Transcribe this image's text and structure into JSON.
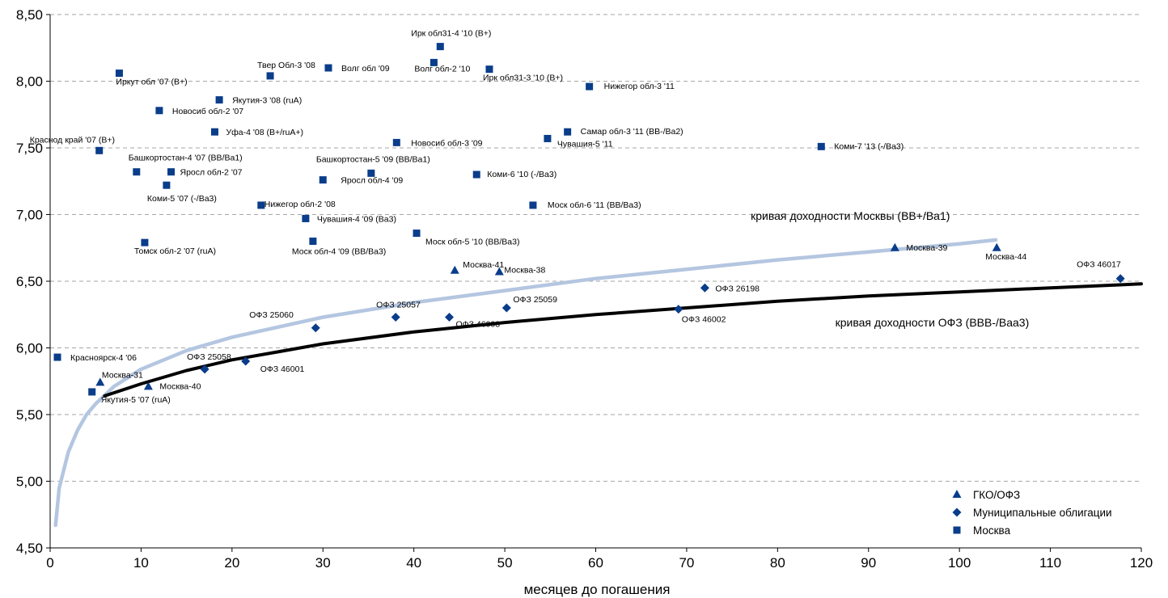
{
  "chart_data": {
    "type": "scatter",
    "xlabel": "месяцев до погашения",
    "ylabel": "",
    "xlim": [
      0,
      120
    ],
    "ylim": [
      4.5,
      8.5
    ],
    "x_ticks": [
      "0",
      "10",
      "20",
      "30",
      "40",
      "50",
      "60",
      "70",
      "80",
      "90",
      "100",
      "110",
      "120"
    ],
    "y_ticks": [
      "4,50",
      "5,00",
      "5,50",
      "6,00",
      "6,50",
      "7,00",
      "7,50",
      "8,00",
      "8,50"
    ],
    "grid": "horizontal dashed",
    "legend_position": "bottom-right",
    "colors": {
      "markers": "#0a3d8a",
      "moscow_curve": "#b4c6e0",
      "ofz_curve": "#000000",
      "grid": "#a6a6a6"
    },
    "series": [
      {
        "name": "ГКО/ОФЗ",
        "marker": "triangle",
        "points": [
          {
            "x": 5.5,
            "y": 5.74,
            "label": "Москва-31"
          },
          {
            "x": 10.8,
            "y": 5.71,
            "label": "Москва-40"
          },
          {
            "x": 44.5,
            "y": 6.58,
            "label": "Москва-41"
          },
          {
            "x": 49.4,
            "y": 6.57,
            "label": "Москва-38"
          },
          {
            "x": 92.9,
            "y": 6.75,
            "label": "Москва-39"
          },
          {
            "x": 104.1,
            "y": 6.75,
            "label": "Москва-44"
          }
        ]
      },
      {
        "name": "Муниципальные облигации",
        "marker": "diamond",
        "points": [
          {
            "x": 17.0,
            "y": 5.84,
            "label": "ОФЗ 25058"
          },
          {
            "x": 21.5,
            "y": 5.9,
            "label": "ОФЗ 46001"
          },
          {
            "x": 29.2,
            "y": 6.15,
            "label": "ОФЗ 25060"
          },
          {
            "x": 38.0,
            "y": 6.23,
            "label": "ОФЗ 25057"
          },
          {
            "x": 43.9,
            "y": 6.23,
            "label": "ОФЗ 46003"
          },
          {
            "x": 50.2,
            "y": 6.3,
            "label": "ОФЗ 25059"
          },
          {
            "x": 69.1,
            "y": 6.29,
            "label": "ОФЗ 46002"
          },
          {
            "x": 72.0,
            "y": 6.45,
            "label": "ОФЗ 26198"
          },
          {
            "x": 117.7,
            "y": 6.52,
            "label": "ОФЗ 46017"
          }
        ]
      },
      {
        "name": "Москва",
        "marker": "square",
        "points": [
          {
            "x": 0.8,
            "y": 5.93,
            "label": "Красноярск-4 '06"
          },
          {
            "x": 4.6,
            "y": 5.67,
            "label": "Якутия-5 '07 (ruA)"
          },
          {
            "x": 5.4,
            "y": 7.48,
            "label": "Краснод край '07 (B+)"
          },
          {
            "x": 7.6,
            "y": 8.06,
            "label": "Иркут обл '07 (B+)"
          },
          {
            "x": 9.5,
            "y": 7.32,
            "label": "Башкортостан-4 '07 (BB/Ba1)"
          },
          {
            "x": 10.4,
            "y": 6.79,
            "label": "Томск обл-2 '07 (ruA)"
          },
          {
            "x": 12.0,
            "y": 7.78,
            "label": "Новосиб обл-2 '07"
          },
          {
            "x": 12.8,
            "y": 7.22,
            "label": "Коми-5 '07 (-/Ba3)"
          },
          {
            "x": 13.3,
            "y": 7.32,
            "label": "Яросл обл-2 '07"
          },
          {
            "x": 18.1,
            "y": 7.62,
            "label": "Уфа-4 '08 (B+/ruA+)"
          },
          {
            "x": 18.6,
            "y": 7.86,
            "label": "Якутия-3 '08 (ruA)"
          },
          {
            "x": 23.2,
            "y": 7.07,
            "label": "Нижегор обл-2 '08"
          },
          {
            "x": 24.2,
            "y": 8.04,
            "label": "Твер Обл-3 '08"
          },
          {
            "x": 28.1,
            "y": 6.97,
            "label": "Чувашия-4 '09 (Ba3)"
          },
          {
            "x": 28.9,
            "y": 6.8,
            "label": "Моск обл-4 '09 (BB/Ba3)"
          },
          {
            "x": 30.0,
            "y": 7.26,
            "label": "Яросл обл-4 '09"
          },
          {
            "x": 30.6,
            "y": 8.1,
            "label": "Волг обл '09"
          },
          {
            "x": 35.3,
            "y": 7.31,
            "label": "Башкортостан-5 '09 (BB/Ba1)"
          },
          {
            "x": 38.1,
            "y": 7.54,
            "label": "Новосиб обл-3 '09"
          },
          {
            "x": 40.3,
            "y": 6.86,
            "label": "Моск обл-5 '10 (BB/Ba3)"
          },
          {
            "x": 42.2,
            "y": 8.14,
            "label": "Волг обл-2 '10"
          },
          {
            "x": 42.9,
            "y": 8.26,
            "label": "Ирк обл31-4 '10 (B+)"
          },
          {
            "x": 46.9,
            "y": 7.3,
            "label": "Коми-6 '10 (-/Ba3)"
          },
          {
            "x": 48.3,
            "y": 8.09,
            "label": "Ирк обл31-3 '10 (B+)"
          },
          {
            "x": 53.1,
            "y": 7.07,
            "label": "Моск обл-6 '11 (BB/Ba3)"
          },
          {
            "x": 54.7,
            "y": 7.57,
            "label": "Чувашия-5 '11"
          },
          {
            "x": 56.9,
            "y": 7.62,
            "label": "Самар обл-3 '11 (BB-/Ba2)"
          },
          {
            "x": 59.3,
            "y": 7.96,
            "label": "Нижегор обл-3 '11"
          },
          {
            "x": 84.8,
            "y": 7.51,
            "label": "Коми-7 '13 (-/Ba3)"
          }
        ]
      }
    ],
    "curves": [
      {
        "label": "кривая доходности Москвы (BB+/Ba1)",
        "points": [
          [
            0.6,
            4.67
          ],
          [
            1,
            4.95
          ],
          [
            2,
            5.22
          ],
          [
            3,
            5.38
          ],
          [
            4,
            5.5
          ],
          [
            5,
            5.58
          ],
          [
            7,
            5.71
          ],
          [
            10,
            5.84
          ],
          [
            15,
            5.98
          ],
          [
            20,
            6.08
          ],
          [
            30,
            6.23
          ],
          [
            40,
            6.34
          ],
          [
            50,
            6.43
          ],
          [
            60,
            6.52
          ],
          [
            70,
            6.59
          ],
          [
            80,
            6.66
          ],
          [
            90,
            6.72
          ],
          [
            100,
            6.78
          ],
          [
            104,
            6.81
          ]
        ]
      },
      {
        "label": "кривая доходности ОФЗ (BBB-/Baa3)",
        "points": [
          [
            6,
            5.64
          ],
          [
            10,
            5.73
          ],
          [
            15,
            5.83
          ],
          [
            20,
            5.91
          ],
          [
            25,
            5.97
          ],
          [
            30,
            6.03
          ],
          [
            40,
            6.12
          ],
          [
            50,
            6.19
          ],
          [
            60,
            6.25
          ],
          [
            70,
            6.3
          ],
          [
            80,
            6.35
          ],
          [
            90,
            6.39
          ],
          [
            100,
            6.42
          ],
          [
            110,
            6.45
          ],
          [
            120,
            6.48
          ]
        ]
      }
    ]
  }
}
